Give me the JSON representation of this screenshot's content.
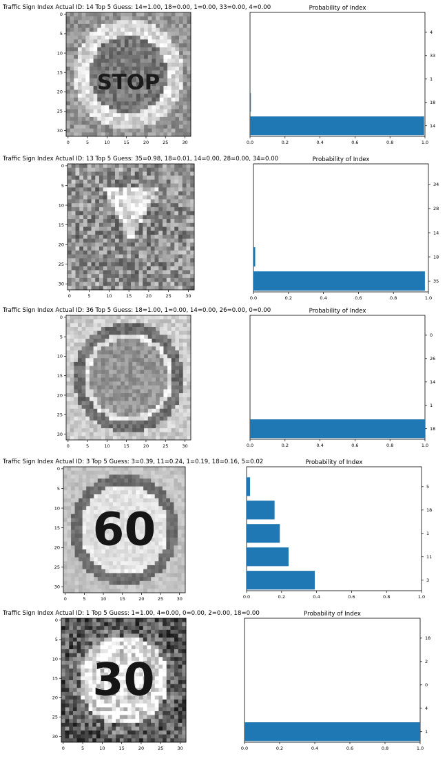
{
  "figure_rows": [
    {
      "title": "Traffic Sign Index Actual ID: 14 Top 5 Guess: 14=1.00, 18=0.00, 1=0.00, 33=0.00, 4=0.00",
      "image_sign": "stop-sign",
      "image_label": "STOP",
      "image_xticks": [
        "0",
        "5",
        "10",
        "15",
        "20",
        "25",
        "30"
      ],
      "image_yticks": [
        "0",
        "5",
        "10",
        "15",
        "20",
        "25",
        "30"
      ],
      "chart_title": "Probability of Index"
    },
    {
      "title": "Traffic Sign Index Actual ID: 13 Top 5 Guess: 35=0.98, 18=0.01, 14=0.00, 28=0.00, 34=0.00",
      "image_sign": "yield-sign",
      "image_label": "",
      "image_xticks": [
        "0",
        "5",
        "10",
        "15",
        "20",
        "25",
        "30"
      ],
      "image_yticks": [
        "0",
        "5",
        "10",
        "15",
        "20",
        "25",
        "30"
      ],
      "chart_title": "Probability of Index"
    },
    {
      "title": "Traffic Sign Index Actual ID: 36 Top 5 Guess: 18=1.00, 1=0.00, 14=0.00, 26=0.00, 0=0.00",
      "image_sign": "circular-sign",
      "image_label": "",
      "image_xticks": [
        "0",
        "5",
        "10",
        "15",
        "20",
        "25",
        "30"
      ],
      "image_yticks": [
        "0",
        "5",
        "10",
        "15",
        "20",
        "25",
        "30"
      ],
      "chart_title": "Probability of Index"
    },
    {
      "title": "Traffic Sign Index Actual ID: 3 Top 5 Guess: 3=0.39, 11=0.24, 1=0.19, 18=0.16, 5=0.02",
      "image_sign": "speed-limit-sign",
      "image_label": "60",
      "image_xticks": [
        "0",
        "5",
        "10",
        "15",
        "20",
        "25",
        "30"
      ],
      "image_yticks": [
        "0",
        "5",
        "10",
        "15",
        "20",
        "25",
        "30"
      ],
      "chart_title": "Probability of Index"
    },
    {
      "title": "Traffic Sign Index Actual ID: 1 Top 5 Guess: 1=1.00, 4=0.00, 0=0.00, 2=0.00, 18=0.00",
      "image_sign": "speed-limit-sign",
      "image_label": "30",
      "image_xticks": [
        "0",
        "5",
        "10",
        "15",
        "20",
        "25",
        "30"
      ],
      "image_yticks": [
        "0",
        "5",
        "10",
        "15",
        "20",
        "25",
        "30"
      ],
      "chart_title": "Probability of Index"
    }
  ],
  "chart_data": [
    {
      "type": "bar",
      "orientation": "horizontal",
      "title": "Probability of Index",
      "categories": [
        "14",
        "18",
        "1",
        "33",
        "4"
      ],
      "values": [
        0.995,
        0.005,
        0.0,
        0.0,
        0.0
      ],
      "xlim": [
        0,
        1
      ],
      "xticks": [
        "0.0",
        "0.2",
        "0.4",
        "0.6",
        "0.8",
        "1.0"
      ],
      "ytick_side": "right",
      "bar_color": "#1f77b4",
      "grid": false
    },
    {
      "type": "bar",
      "orientation": "horizontal",
      "title": "Probability of Index",
      "categories": [
        "35",
        "18",
        "14",
        "28",
        "34"
      ],
      "values": [
        0.98,
        0.01,
        0.0,
        0.0,
        0.0
      ],
      "xlim": [
        0,
        1
      ],
      "xticks": [
        "0.0",
        "0.2",
        "0.4",
        "0.6",
        "0.8",
        "1.0"
      ],
      "ytick_side": "right",
      "bar_color": "#1f77b4",
      "grid": false
    },
    {
      "type": "bar",
      "orientation": "horizontal",
      "title": "Probability of Index",
      "categories": [
        "18",
        "1",
        "14",
        "26",
        "0"
      ],
      "values": [
        1.0,
        0.0,
        0.0,
        0.0,
        0.0
      ],
      "xlim": [
        0,
        1
      ],
      "xticks": [
        "0.0",
        "0.2",
        "0.4",
        "0.6",
        "0.8",
        "1.0"
      ],
      "ytick_side": "right",
      "bar_color": "#1f77b4",
      "grid": false
    },
    {
      "type": "bar",
      "orientation": "horizontal",
      "title": "Probability of Index",
      "categories": [
        "3",
        "11",
        "1",
        "18",
        "5"
      ],
      "values": [
        0.39,
        0.24,
        0.19,
        0.16,
        0.02
      ],
      "xlim": [
        0,
        1
      ],
      "xticks": [
        "0.0",
        "0.2",
        "0.4",
        "0.6",
        "0.8",
        "1.0"
      ],
      "ytick_side": "right",
      "bar_color": "#1f77b4",
      "grid": false
    },
    {
      "type": "bar",
      "orientation": "horizontal",
      "title": "Probability of Index",
      "categories": [
        "1",
        "4",
        "0",
        "2",
        "18"
      ],
      "values": [
        1.0,
        0.0,
        0.0,
        0.0,
        0.0
      ],
      "xlim": [
        0,
        1
      ],
      "xticks": [
        "0.0",
        "0.2",
        "0.4",
        "0.6",
        "0.8",
        "1.0"
      ],
      "ytick_side": "right",
      "bar_color": "#1f77b4",
      "grid": false
    }
  ]
}
